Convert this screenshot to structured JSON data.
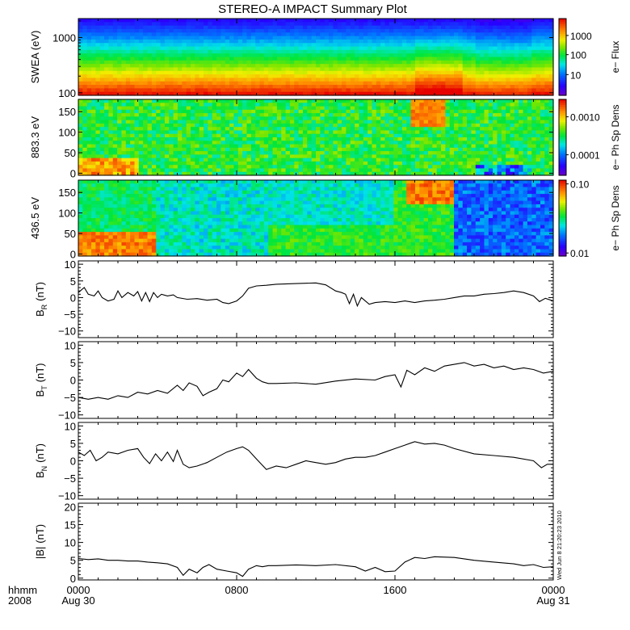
{
  "chart_data": {
    "type": "line",
    "title": "STEREO-A IMPACT Summary Plot",
    "stamp": "Wed Jun  8 21:20:23 2010",
    "x_time_labels": [
      {
        "hhmm": "0000",
        "date": "Aug 30",
        "hour": 0
      },
      {
        "hhmm": "0800",
        "date": "",
        "hour": 8
      },
      {
        "hhmm": "1600",
        "date": "",
        "hour": 16
      },
      {
        "hhmm": "0000",
        "date": "Aug 31",
        "hour": 24
      }
    ],
    "x_header": {
      "line1": "hhmm",
      "line2": "2008"
    },
    "xlim_hours": [
      0,
      24
    ],
    "spectrograms": [
      {
        "name": "swea",
        "ylabel": "SWEA (eV)",
        "yscale": "log",
        "ylim": [
          90,
          2200
        ],
        "yticks": [
          "1000",
          "100"
        ],
        "ytick_values": [
          1000,
          100
        ],
        "colorbar_label": "e− Flux",
        "colorbar_ticks": [
          "1000",
          "100",
          "10"
        ],
        "colorbar_tick_fracs": [
          0.78,
          0.53,
          0.27
        ]
      },
      {
        "name": "pad883",
        "ylabel": "883.3 eV",
        "yscale": "linear",
        "ylim": [
          -5,
          180
        ],
        "yticks": [
          "150",
          "100",
          "50",
          "0"
        ],
        "ytick_values": [
          150,
          100,
          50,
          0
        ],
        "colorbar_label": "e− Ph Sp Dens",
        "colorbar_ticks": [
          "0.0010",
          "0.0001"
        ],
        "colorbar_tick_fracs": [
          0.77,
          0.27
        ]
      },
      {
        "name": "pad436",
        "ylabel": "436.5 eV",
        "yscale": "linear",
        "ylim": [
          -5,
          180
        ],
        "yticks": [
          "150",
          "100",
          "50",
          "0"
        ],
        "ytick_values": [
          150,
          100,
          50,
          0
        ],
        "colorbar_label": "e− Ph Sp Dens",
        "colorbar_ticks": [
          "0.10",
          "0.01"
        ],
        "colorbar_tick_fracs": [
          0.95,
          0.04
        ]
      }
    ],
    "line_panels": [
      {
        "name": "BR",
        "ylabel": "B",
        "ysub": "R",
        "yunit": "(nT)",
        "ylim": [
          -12,
          11
        ],
        "yticks": [
          10,
          5,
          0,
          -5,
          -10
        ],
        "ytick_labels": [
          "10",
          "5",
          "0",
          "−5",
          "−10"
        ],
        "series": [
          {
            "x": [
              0,
              0.3,
              0.5,
              0.8,
              1.0,
              1.2,
              1.5,
              1.8,
              2.0,
              2.2,
              2.5,
              2.8,
              3.0,
              3.2,
              3.4,
              3.6,
              3.8,
              4.0,
              4.2,
              4.5,
              4.8,
              5.0,
              5.5,
              6.0,
              6.5,
              7.0,
              7.3,
              7.6,
              8.0,
              8.3,
              8.6,
              9.0,
              9.5,
              10.0,
              11.0,
              12.0,
              12.5,
              13.0,
              13.3,
              13.5,
              13.7,
              13.9,
              14.1,
              14.3,
              14.5,
              14.7,
              15.0,
              15.5,
              16.0,
              16.5,
              17.0,
              17.5,
              18.0,
              18.5,
              19.0,
              19.5,
              20.0,
              20.5,
              21.0,
              21.5,
              22.0,
              22.5,
              23.0,
              23.3,
              23.6,
              24.0
            ],
            "y": [
              1.5,
              3.0,
              1.0,
              0.5,
              2.0,
              0.0,
              -1.0,
              -0.5,
              2.0,
              0.0,
              1.5,
              0.5,
              1.8,
              -1.0,
              1.5,
              -1.2,
              1.5,
              0.0,
              1.0,
              0.5,
              0.8,
              0.0,
              -0.5,
              -0.3,
              -0.8,
              -0.5,
              -1.5,
              -1.8,
              -1.0,
              0.5,
              2.8,
              3.5,
              3.7,
              4.0,
              4.2,
              4.4,
              3.8,
              2.0,
              1.5,
              1.0,
              -1.8,
              1.0,
              -2.5,
              0.0,
              -1.0,
              -2.0,
              -1.5,
              -1.2,
              -1.5,
              -1.0,
              -1.5,
              -1.0,
              -0.8,
              -0.5,
              0.0,
              0.5,
              0.5,
              1.0,
              1.2,
              1.5,
              2.0,
              1.5,
              0.5,
              -1.2,
              -0.2,
              -1.0
            ]
          }
        ]
      },
      {
        "name": "BT",
        "ylabel": "B",
        "ysub": "T",
        "yunit": "(nT)",
        "ylim": [
          -11,
          11
        ],
        "yticks": [
          10,
          5,
          0,
          -5,
          -10
        ],
        "ytick_labels": [
          "10",
          "5",
          "0",
          "−5",
          "−10"
        ],
        "series": [
          {
            "x": [
              0,
              0.5,
              1.0,
              1.5,
              2.0,
              2.5,
              3.0,
              3.5,
              4.0,
              4.5,
              5.0,
              5.3,
              5.6,
              6.0,
              6.3,
              6.6,
              7.0,
              7.3,
              7.6,
              8.0,
              8.3,
              8.6,
              9.0,
              9.3,
              9.6,
              10.0,
              11.0,
              12.0,
              13.0,
              14.0,
              15.0,
              15.5,
              16.0,
              16.3,
              16.6,
              17.0,
              17.5,
              18.0,
              18.5,
              19.0,
              19.5,
              20.0,
              20.5,
              21.0,
              21.5,
              22.0,
              22.5,
              23.0,
              23.5,
              24.0
            ],
            "y": [
              -5.0,
              -5.5,
              -5.0,
              -5.5,
              -4.5,
              -5.0,
              -3.5,
              -4.0,
              -3.0,
              -3.8,
              -1.5,
              -3.0,
              -0.8,
              -1.8,
              -4.5,
              -3.5,
              -2.5,
              0.0,
              -0.5,
              2.0,
              1.0,
              3.0,
              0.5,
              -0.5,
              -1.0,
              -1.0,
              -0.8,
              -1.2,
              -0.3,
              0.3,
              0.0,
              1.0,
              1.5,
              -2.0,
              2.8,
              1.5,
              3.5,
              2.5,
              4.0,
              4.5,
              5.0,
              4.0,
              4.5,
              3.5,
              4.0,
              3.0,
              3.5,
              3.0,
              2.0,
              2.5
            ]
          }
        ]
      },
      {
        "name": "BN",
        "ylabel": "B",
        "ysub": "N",
        "yunit": "(nT)",
        "ylim": [
          -11,
          11
        ],
        "yticks": [
          10,
          5,
          0,
          -5,
          -10
        ],
        "ytick_labels": [
          "10",
          "5",
          "0",
          "−5",
          "−10"
        ],
        "series": [
          {
            "x": [
              0,
              0.3,
              0.6,
              0.9,
              1.2,
              1.5,
              2.0,
              2.5,
              3.0,
              3.3,
              3.6,
              3.9,
              4.2,
              4.5,
              4.8,
              5.0,
              5.3,
              5.6,
              6.0,
              6.5,
              7.0,
              7.5,
              8.0,
              8.3,
              8.6,
              9.0,
              9.5,
              10.0,
              10.5,
              11.0,
              11.5,
              12.0,
              12.5,
              13.0,
              13.5,
              14.0,
              14.5,
              15.0,
              15.5,
              16.0,
              16.5,
              17.0,
              17.5,
              18.0,
              18.5,
              19.0,
              20.0,
              21.0,
              22.0,
              23.0,
              23.4,
              23.7,
              24.0
            ],
            "y": [
              2.5,
              1.5,
              3.0,
              0.0,
              1.0,
              2.5,
              2.0,
              3.0,
              3.5,
              1.0,
              -0.8,
              2.0,
              0.0,
              2.5,
              -0.2,
              3.0,
              -1.0,
              -2.0,
              -1.5,
              -0.5,
              1.0,
              2.5,
              3.5,
              4.0,
              3.0,
              0.5,
              -2.5,
              -1.5,
              -2.0,
              -1.0,
              0.0,
              -0.5,
              -1.0,
              -0.5,
              0.5,
              1.0,
              1.0,
              1.5,
              2.5,
              3.5,
              4.5,
              5.5,
              4.8,
              5.0,
              4.5,
              3.5,
              2.0,
              1.5,
              1.0,
              0.0,
              -2.0,
              -1.0,
              -1.0
            ]
          }
        ]
      },
      {
        "name": "Bmag",
        "ylabel": "|B|",
        "ysub": "",
        "yunit": "(nT)",
        "ylim": [
          -0.5,
          21
        ],
        "yticks": [
          20,
          15,
          10,
          5,
          0
        ],
        "ytick_labels": [
          "20",
          "15",
          "10",
          "5",
          "0"
        ],
        "series": [
          {
            "x": [
              0,
              0.5,
              1.0,
              1.5,
              2.0,
              2.5,
              3.0,
              3.5,
              4.0,
              4.5,
              5.0,
              5.3,
              5.6,
              6.0,
              6.3,
              6.6,
              7.0,
              7.5,
              8.0,
              8.3,
              8.6,
              9.0,
              9.3,
              9.6,
              10.0,
              11.0,
              12.0,
              13.0,
              14.0,
              14.5,
              15.0,
              15.5,
              16.0,
              16.5,
              17.0,
              17.5,
              18.0,
              19.0,
              20.0,
              21.0,
              22.0,
              22.5,
              23.0,
              23.5,
              24.0
            ],
            "y": [
              5.5,
              5.2,
              5.4,
              5.0,
              5.0,
              4.8,
              4.8,
              4.5,
              4.3,
              4.0,
              3.0,
              0.8,
              2.5,
              1.5,
              3.0,
              3.8,
              2.5,
              2.0,
              1.5,
              0.5,
              2.5,
              3.5,
              3.2,
              3.5,
              3.5,
              3.7,
              3.5,
              3.8,
              3.2,
              2.0,
              3.0,
              1.8,
              2.0,
              4.5,
              5.8,
              5.5,
              6.0,
              5.8,
              5.0,
              4.5,
              4.0,
              3.5,
              3.8,
              3.0,
              3.2
            ]
          }
        ]
      }
    ]
  }
}
